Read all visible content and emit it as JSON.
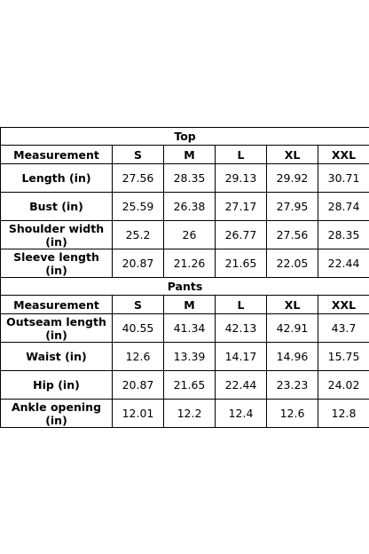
{
  "sections": [
    {
      "title": "Top",
      "header": [
        "Measurement",
        "S",
        "M",
        "L",
        "XL",
        "XXL"
      ],
      "rows": [
        [
          "Length (in)",
          27.56,
          28.35,
          29.13,
          29.92,
          30.71
        ],
        [
          "Bust (in)",
          25.59,
          26.38,
          27.17,
          27.95,
          28.74
        ],
        [
          "Shoulder width (in)",
          25.2,
          26,
          26.77,
          27.56,
          28.35
        ],
        [
          "Sleeve length (in)",
          20.87,
          21.26,
          21.65,
          22.05,
          22.44
        ]
      ]
    },
    {
      "title": "Pants",
      "header": [
        "Measurement",
        "S",
        "M",
        "L",
        "XL",
        "XXL"
      ],
      "rows": [
        [
          "Outseam length (in)",
          40.55,
          41.34,
          42.13,
          42.91,
          43.7
        ],
        [
          "Waist (in)",
          12.6,
          13.39,
          14.17,
          14.96,
          15.75
        ],
        [
          "Hip (in)",
          20.87,
          21.65,
          22.44,
          23.23,
          24.02
        ],
        [
          "Ankle opening (in)",
          12.01,
          12.2,
          12.4,
          12.6,
          12.8
        ]
      ]
    }
  ]
}
